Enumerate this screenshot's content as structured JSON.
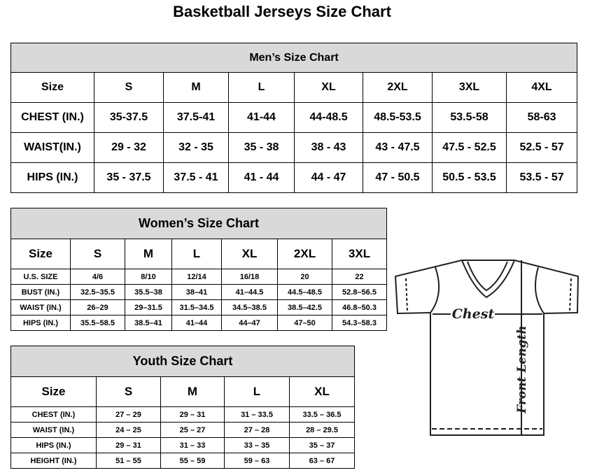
{
  "title": "Basketball Jerseys Size Chart",
  "men": {
    "title": "Men’s Size Chart",
    "rows": [
      [
        "Size",
        "S",
        "M",
        "L",
        "XL",
        "2XL",
        "3XL",
        "4XL"
      ],
      [
        "CHEST (IN.)",
        "35-37.5",
        "37.5-41",
        "41-44",
        "44-48.5",
        "48.5-53.5",
        "53.5-58",
        "58-63"
      ],
      [
        "WAIST(IN.)",
        "29 - 32",
        "32 - 35",
        "35 - 38",
        "38 - 43",
        "43 - 47.5",
        "47.5 - 52.5",
        "52.5 - 57"
      ],
      [
        "HIPS (IN.)",
        "35 - 37.5",
        "37.5 - 41",
        "41 - 44",
        "44 - 47",
        "47 - 50.5",
        "50.5 - 53.5",
        "53.5 - 57"
      ]
    ]
  },
  "women": {
    "title": "Women’s Size Chart",
    "rows": [
      [
        "Size",
        "S",
        "M",
        "L",
        "XL",
        "2XL",
        "3XL"
      ],
      [
        "U.S. SIZE",
        "4/6",
        "8/10",
        "12/14",
        "16/18",
        "20",
        "22"
      ],
      [
        "BUST (IN.)",
        "32.5–35.5",
        "35.5–38",
        "38–41",
        "41–44.5",
        "44.5–48.5",
        "52.8–56.5"
      ],
      [
        "WAIST (IN.)",
        "26–29",
        "29–31.5",
        "31.5–34.5",
        "34.5–38.5",
        "38.5–42.5",
        "46.8–50.3"
      ],
      [
        "HIPS (IN.)",
        "35.5–58.5",
        "38.5–41",
        "41–44",
        "44–47",
        "47–50",
        "54.3–58.3"
      ]
    ]
  },
  "youth": {
    "title": "Youth Size Chart",
    "rows": [
      [
        "Size",
        "S",
        "M",
        "L",
        "XL"
      ],
      [
        "CHEST (IN.)",
        "27 – 29",
        "29 – 31",
        "31 – 33.5",
        "33.5 – 36.5"
      ],
      [
        "WAIST (IN.)",
        "24 – 25",
        "25 – 27",
        "27 – 28",
        "28 – 29.5"
      ],
      [
        "HIPS (IN.)",
        "29 – 31",
        "31 – 33",
        "33 – 35",
        "35 – 37"
      ],
      [
        "HEIGHT (IN.)",
        "51 – 55",
        "55 – 59",
        "59 – 63",
        "63 – 67"
      ]
    ]
  },
  "diagram": {
    "chest_label": "Chest",
    "length_label": "Front Length"
  },
  "colors": {
    "header_bg": "#d9d9d9",
    "line": "#231f20"
  }
}
